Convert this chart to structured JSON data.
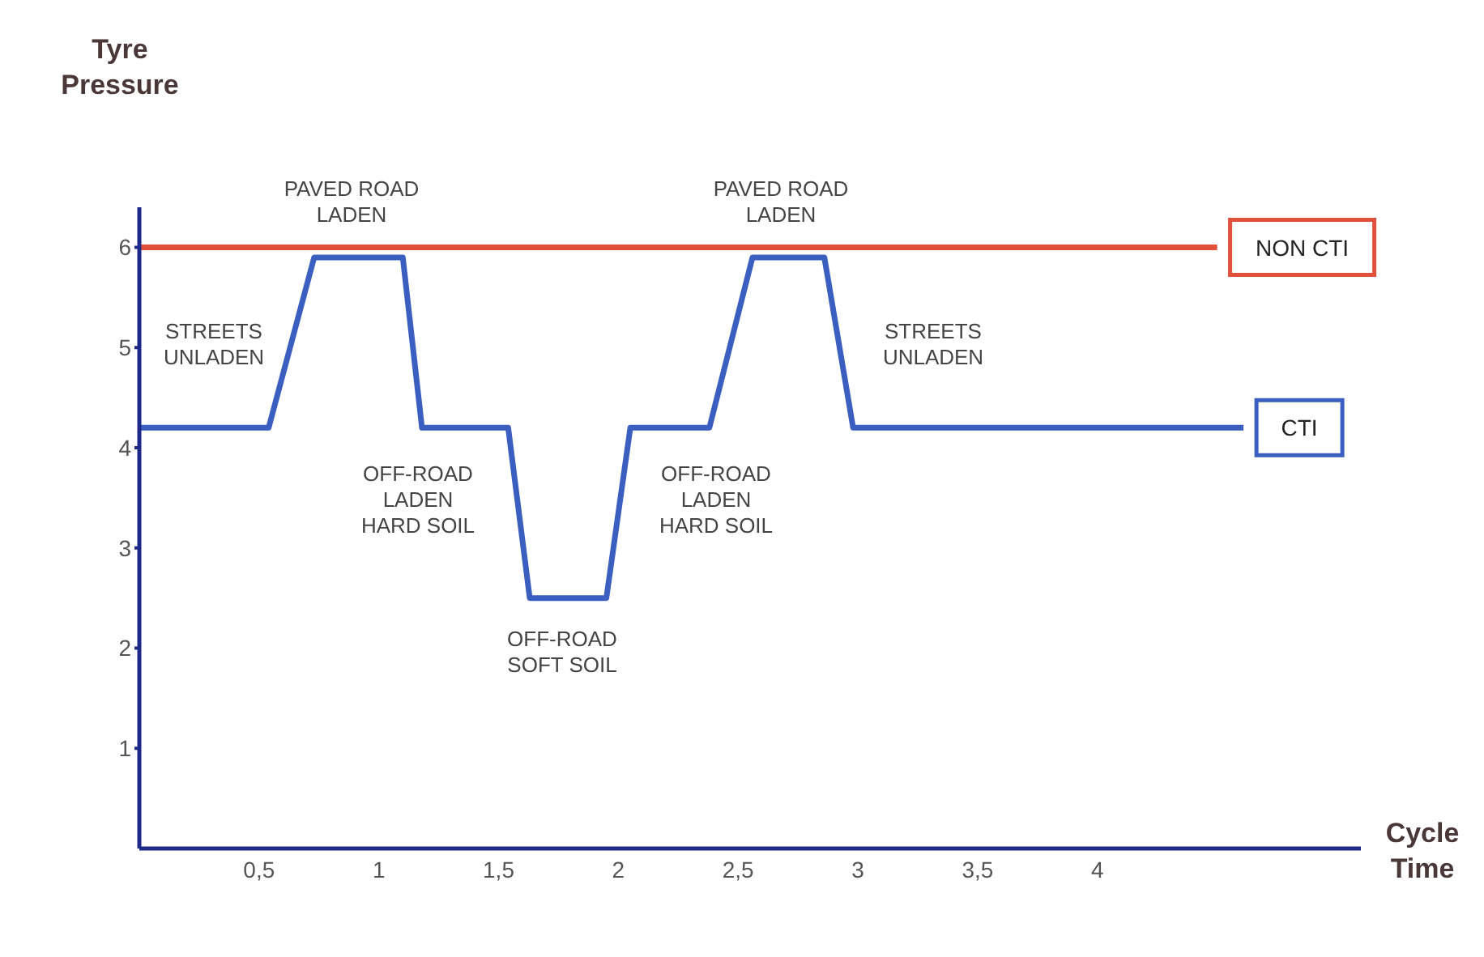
{
  "chart_data": {
    "type": "line",
    "xlabel": "Cycle\nTime",
    "ylabel": "Tyre\nPressure",
    "xlim": [
      0,
      5.1
    ],
    "ylim": [
      0,
      6.4
    ],
    "xticks": [
      {
        "value": 0.5,
        "label": "0,5"
      },
      1,
      {
        "value": 1.5,
        "label": "1,5"
      },
      2,
      {
        "value": 2.5,
        "label": "2,5"
      },
      3,
      {
        "value": 3.5,
        "label": "3,5"
      },
      4
    ],
    "yticks": [
      1,
      2,
      3,
      4,
      5,
      6
    ],
    "grid": false,
    "marker": "none",
    "line_style": "solid",
    "series": [
      {
        "name": "NON CTI",
        "color": "#e0503a",
        "x": [
          0,
          4.5
        ],
        "values": [
          6,
          6
        ]
      },
      {
        "name": "CTI",
        "color": "#3a5fc0",
        "x": [
          0,
          0.54,
          0.73,
          1.1,
          1.18,
          1.54,
          1.63,
          1.95,
          2.05,
          2.38,
          2.56,
          2.86,
          2.98,
          4.61
        ],
        "values": [
          4.2,
          4.2,
          5.9,
          5.9,
          4.2,
          4.2,
          2.5,
          2.5,
          4.2,
          4.2,
          5.9,
          5.9,
          4.2,
          4.2
        ]
      }
    ],
    "annotations": [
      "PAVED ROAD\nLADEN",
      "STREETS\nUNLADEN",
      "OFF-ROAD\nLADEN\nHARD SOIL",
      "OFF-ROAD\nSOFT SOIL",
      "OFF-ROAD\nLADEN\nHARD SOIL",
      "PAVED ROAD\nLADEN",
      "STREETS\nUNLADEN"
    ]
  }
}
